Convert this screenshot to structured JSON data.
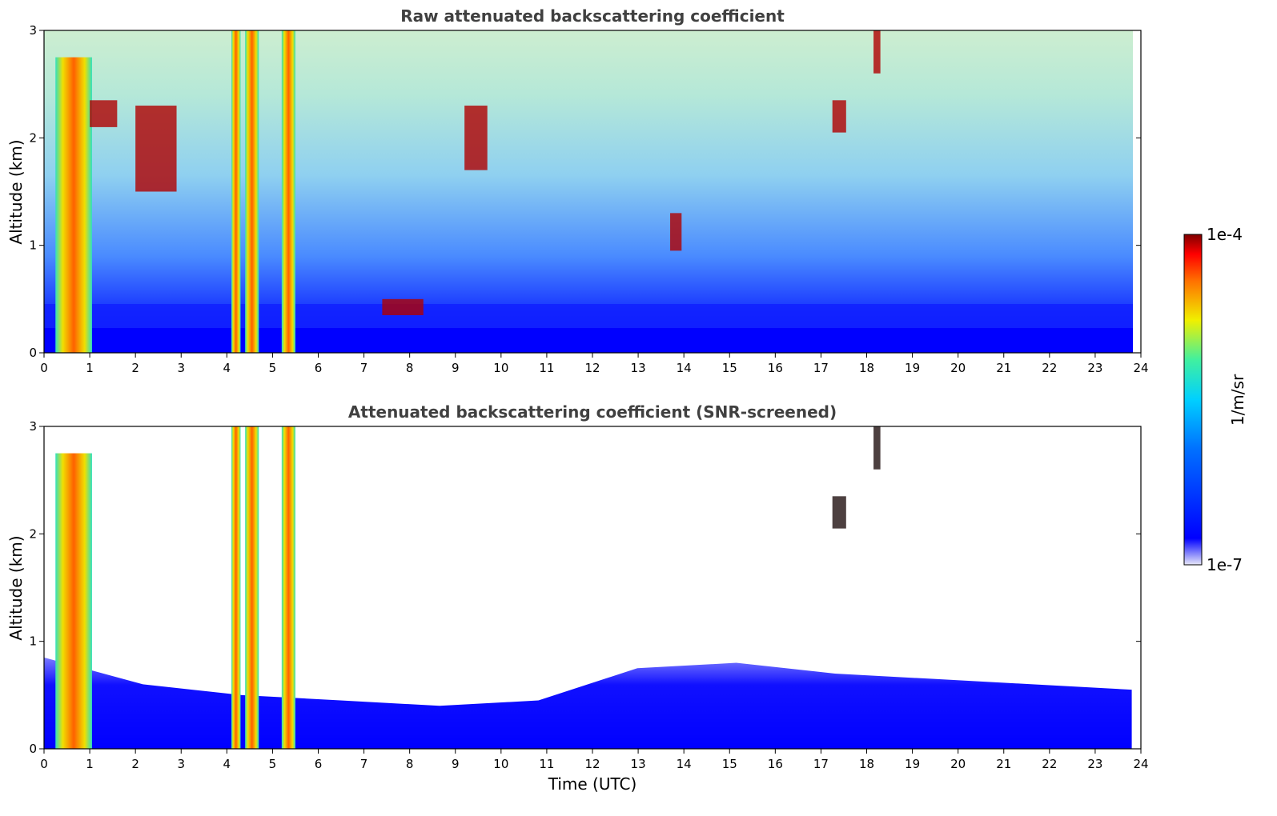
{
  "chart_data": [
    {
      "type": "heatmap",
      "title": "Raw attenuated backscattering coefficient",
      "xlabel": "",
      "ylabel": "Altitude (km)",
      "xlim": [
        0,
        24
      ],
      "ylim": [
        0,
        3
      ],
      "x_ticks": [
        "0",
        "1",
        "2",
        "3",
        "4",
        "5",
        "6",
        "7",
        "8",
        "9",
        "10",
        "11",
        "12",
        "13",
        "14",
        "15",
        "16",
        "17",
        "18",
        "19",
        "20",
        "21",
        "22",
        "23",
        "24"
      ],
      "y_ticks": [
        "0",
        "1",
        "2",
        "3"
      ],
      "data_x_extent": [
        0,
        23.8
      ],
      "features": [
        {
          "kind": "aerosol_layer",
          "x_range": [
            0,
            23.8
          ],
          "y_top_km": 0.45
        },
        {
          "kind": "cloud_column",
          "x_range": [
            0.25,
            1.05
          ],
          "y_range": [
            0,
            2.75
          ]
        },
        {
          "kind": "cloud_column",
          "x_range": [
            4.1,
            4.3
          ],
          "y_range": [
            0,
            3.0
          ]
        },
        {
          "kind": "cloud_column",
          "x_range": [
            4.4,
            4.7
          ],
          "y_range": [
            0,
            3.0
          ]
        },
        {
          "kind": "cloud_column",
          "x_range": [
            5.2,
            5.5
          ],
          "y_range": [
            0,
            3.0
          ]
        },
        {
          "kind": "cloud_patch",
          "x_range": [
            1.0,
            1.6
          ],
          "y_range": [
            2.1,
            2.35
          ]
        },
        {
          "kind": "cloud_patch",
          "x_range": [
            2.0,
            2.9
          ],
          "y_range": [
            1.5,
            2.3
          ]
        },
        {
          "kind": "cloud_patch",
          "x_range": [
            9.2,
            9.7
          ],
          "y_range": [
            1.7,
            2.3
          ]
        },
        {
          "kind": "cloud_patch",
          "x_range": [
            7.4,
            8.3
          ],
          "y_range": [
            0.35,
            0.5
          ]
        },
        {
          "kind": "cloud_patch",
          "x_range": [
            13.7,
            13.95
          ],
          "y_range": [
            0.95,
            1.3
          ]
        },
        {
          "kind": "cloud_patch",
          "x_range": [
            17.25,
            17.55
          ],
          "y_range": [
            2.05,
            2.35
          ]
        },
        {
          "kind": "cloud_patch",
          "x_range": [
            18.15,
            18.3
          ],
          "y_range": [
            2.6,
            3.0
          ]
        }
      ]
    },
    {
      "type": "heatmap",
      "title": "Attenuated backscattering coefficient (SNR-screened)",
      "xlabel": "Time (UTC)",
      "ylabel": "Altitude (km)",
      "xlim": [
        0,
        24
      ],
      "ylim": [
        0,
        3
      ],
      "x_ticks": [
        "0",
        "1",
        "2",
        "3",
        "4",
        "5",
        "6",
        "7",
        "8",
        "9",
        "10",
        "11",
        "12",
        "13",
        "14",
        "15",
        "16",
        "17",
        "18",
        "19",
        "20",
        "21",
        "22",
        "23",
        "24"
      ],
      "y_ticks": [
        "0",
        "1",
        "2",
        "3"
      ],
      "data_x_extent": [
        0,
        23.8
      ],
      "features": [
        {
          "kind": "boundary_layer",
          "x_range": [
            0,
            23.8
          ],
          "y_top_km": [
            0.85,
            0.6,
            0.5,
            0.45,
            0.4,
            0.45,
            0.75,
            0.8,
            0.7,
            0.65,
            0.6,
            0.55
          ]
        },
        {
          "kind": "cloud_column",
          "x_range": [
            0.25,
            1.05
          ],
          "y_range": [
            0,
            2.75
          ]
        },
        {
          "kind": "cloud_column",
          "x_range": [
            4.1,
            4.3
          ],
          "y_range": [
            0,
            3.0
          ]
        },
        {
          "kind": "cloud_column",
          "x_range": [
            4.4,
            4.7
          ],
          "y_range": [
            0,
            3.0
          ]
        },
        {
          "kind": "cloud_column",
          "x_range": [
            5.2,
            5.5
          ],
          "y_range": [
            0,
            3.0
          ]
        },
        {
          "kind": "cloud_patch",
          "x_range": [
            17.25,
            17.55
          ],
          "y_range": [
            2.05,
            2.35
          ]
        },
        {
          "kind": "cloud_patch",
          "x_range": [
            18.15,
            18.3
          ],
          "y_range": [
            2.6,
            3.0
          ]
        }
      ]
    }
  ],
  "colorbar": {
    "label": "1/m/sr",
    "min_label": "1e-7",
    "max_label": "1e-4",
    "scale": "log",
    "colormap": "jet",
    "stops": [
      "#e8e8f8",
      "#0000ff",
      "#00c8ff",
      "#20e0b0",
      "#f0f000",
      "#ff8000",
      "#ff0000",
      "#7f0000"
    ]
  }
}
